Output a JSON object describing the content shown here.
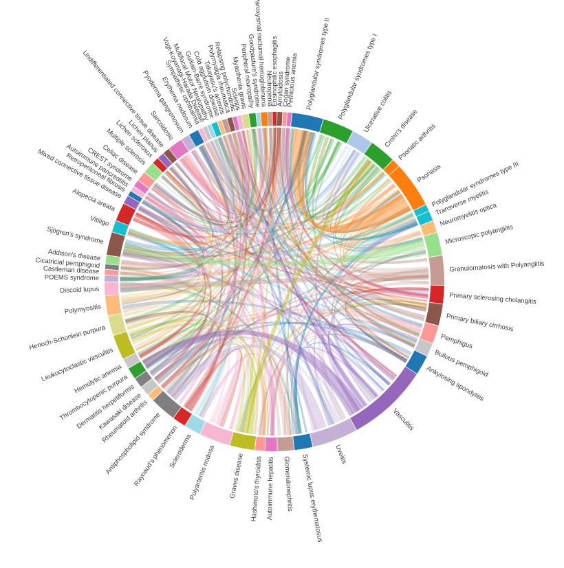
{
  "chart_data": {
    "type": "chord",
    "groups": [
      {
        "label": "Polyglandular syndromes type II",
        "weight": 3.8,
        "color": "#1f77b4"
      },
      {
        "label": "Polyglandular syndromes type I",
        "weight": 3.8,
        "color": "#2ca02c"
      },
      {
        "label": "Ulcerative colitis",
        "weight": 2.6,
        "color": "#aec7e8"
      },
      {
        "label": "Crohn's disease",
        "weight": 3.2,
        "color": "#2ca02c"
      },
      {
        "label": "Psoriatic arthritis",
        "weight": 1.0,
        "color": "#ff7f0e"
      },
      {
        "label": "Psoriasis",
        "weight": 5.6,
        "color": "#ff7f0e"
      },
      {
        "label": "Polyglandular syndromes type III",
        "weight": 0.8,
        "color": "#17becf"
      },
      {
        "label": "Transverse myelitis",
        "weight": 1.2,
        "color": "#17becf"
      },
      {
        "label": "Neuromyelitis optica",
        "weight": 1.4,
        "color": "#ffbb78"
      },
      {
        "label": "Microscopic polyangiitis",
        "weight": 2.8,
        "color": "#98df8a"
      },
      {
        "label": "Granulomatosis with Polyangiitis",
        "weight": 3.6,
        "color": "#c49c94"
      },
      {
        "label": "Primary sclerosing cholangitis",
        "weight": 2.2,
        "color": "#d62728"
      },
      {
        "label": "Primary biliary cirrhosis",
        "weight": 2.6,
        "color": "#8c564b"
      },
      {
        "label": "Pemphigus",
        "weight": 2.2,
        "color": "#ff9896"
      },
      {
        "label": "Bullous pemphigoid",
        "weight": 1.6,
        "color": "#c7c7c7"
      },
      {
        "label": "Ankylosing spondylitis",
        "weight": 2.4,
        "color": "#1f77b4"
      },
      {
        "label": "Vasculitis",
        "weight": 10.0,
        "color": "#9467bd"
      },
      {
        "label": "Uveitis",
        "weight": 5.6,
        "color": "#c5b0d5"
      },
      {
        "label": "Systemic lupus erythematosus",
        "weight": 2.2,
        "color": "#1f77b4"
      },
      {
        "label": "Glomerulonephritis",
        "weight": 2.0,
        "color": "#c49c94"
      },
      {
        "label": "Autoimmune hepatitis",
        "weight": 1.4,
        "color": "#e377c2"
      },
      {
        "label": "Hashimoto's thyroiditis",
        "weight": 1.2,
        "color": "#ff9896"
      },
      {
        "label": "Graves disease",
        "weight": 3.0,
        "color": "#bcbd22"
      },
      {
        "label": "Polyarteritis nodosa",
        "weight": 3.8,
        "color": "#f7b6d2"
      },
      {
        "label": "Scleroderma",
        "weight": 2.0,
        "color": "#9edae5"
      },
      {
        "label": "Raynaud's phenomenon",
        "weight": 1.6,
        "color": "#d62728"
      },
      {
        "label": "Antiphospholipid syndrome",
        "weight": 3.2,
        "color": "#7f7f7f"
      },
      {
        "label": "Rheumatoid arthritis",
        "weight": 0.8,
        "color": "#ffbb78"
      },
      {
        "label": "Kawasaki disease",
        "weight": 1.2,
        "color": "#c7c7c7"
      },
      {
        "label": "Dermatitis herpetiformis",
        "weight": 1.2,
        "color": "#7f7f7f"
      },
      {
        "label": "Thrombocytopenic purpura",
        "weight": 1.4,
        "color": "#2ca02c"
      },
      {
        "label": "Hemolytic anemia",
        "weight": 1.2,
        "color": "#c7c7c7"
      },
      {
        "label": "Leukocytoclastic vasculitis",
        "weight": 3.0,
        "color": "#bcbd22"
      },
      {
        "label": "Henoch-Schonlein purpura",
        "weight": 2.4,
        "color": "#dbdb8d"
      },
      {
        "label": "Polymyositis",
        "weight": 2.4,
        "color": "#ffbb78"
      },
      {
        "label": "Discoid lupus",
        "weight": 1.6,
        "color": "#f7b6d2"
      },
      {
        "label": "POEMS syndrome",
        "weight": 0.8,
        "color": "#c5b0d5"
      },
      {
        "label": "Castleman disease",
        "weight": 0.6,
        "color": "#ff9896"
      },
      {
        "label": "Cicatricial pemphigoid",
        "weight": 0.6,
        "color": "#7f7f7f"
      },
      {
        "label": "Addison's disease",
        "weight": 1.0,
        "color": "#98df8a"
      },
      {
        "label": "Sjögren's syndrome",
        "weight": 2.8,
        "color": "#8c564b"
      },
      {
        "label": "Vitiligo",
        "weight": 1.4,
        "color": "#17becf"
      },
      {
        "label": "Alopecia areata",
        "weight": 2.2,
        "color": "#d62728"
      },
      {
        "label": "Mixed connective tissue disease",
        "weight": 1.0,
        "color": "#9467bd"
      },
      {
        "label": "Retroperitoneal fibrosis",
        "weight": 0.6,
        "color": "#1f77b4"
      },
      {
        "label": "Autoimmune pancreatitis",
        "weight": 0.6,
        "color": "#f7b6d2"
      },
      {
        "label": "CREST syndrome",
        "weight": 0.8,
        "color": "#e377c2"
      },
      {
        "label": "Celiac disease",
        "weight": 1.2,
        "color": "#ff9896"
      },
      {
        "label": "Multiple sclerosis",
        "weight": 1.4,
        "color": "#98df8a"
      },
      {
        "label": "Lichen sclerosus",
        "weight": 0.8,
        "color": "#d62728"
      },
      {
        "label": "Lichen planus",
        "weight": 0.8,
        "color": "#9467bd"
      },
      {
        "label": "Undifferentiated connective tissue disease",
        "weight": 0.8,
        "color": "#8c564b"
      },
      {
        "label": "Sarcoidosis",
        "weight": 1.8,
        "color": "#e377c2"
      },
      {
        "label": "Pyoderma gangrenosum",
        "weight": 1.0,
        "color": "#c5b0d5"
      },
      {
        "label": "Erythema nodosum",
        "weight": 1.2,
        "color": "#1f77b4"
      },
      {
        "label": "Sympathetic ophthalmia",
        "weight": 0.5,
        "color": "#f7b6d2"
      },
      {
        "label": "Vogt-Koyanagi-Harada Disease",
        "weight": 0.5,
        "color": "#c7c7c7"
      },
      {
        "label": "Multifocal Motor Neuropathy",
        "weight": 0.5,
        "color": "#9edae5"
      },
      {
        "label": "Guillain-Barré syndrome",
        "weight": 0.7,
        "color": "#17becf"
      },
      {
        "label": "Cold agglutinin disease",
        "weight": 0.5,
        "color": "#ffbb78"
      },
      {
        "label": "Takayasu's arteritis",
        "weight": 0.6,
        "color": "#c49c94"
      },
      {
        "label": "Polymyalgia rheumatica",
        "weight": 0.6,
        "color": "#8c564b"
      },
      {
        "label": "Relapsing polychondritis",
        "weight": 0.5,
        "color": "#e377c2"
      },
      {
        "label": "Scleritis",
        "weight": 0.5,
        "color": "#f7b6d2"
      },
      {
        "label": "Myasthenia gravis",
        "weight": 0.8,
        "color": "#dbdb8d"
      },
      {
        "label": "Peripheral neuropathy",
        "weight": 0.8,
        "color": "#2ca02c"
      },
      {
        "label": "Goodpasture's syndrome",
        "weight": 0.5,
        "color": "#9edae5"
      },
      {
        "label": "Paroxysmal nocturnal hemoglobinuria",
        "weight": 0.8,
        "color": "#ff7f0e"
      },
      {
        "label": "Neutropenia",
        "weight": 0.5,
        "color": "#c49c94"
      },
      {
        "label": "Eosinophilic esophagitis",
        "weight": 0.5,
        "color": "#d62728"
      },
      {
        "label": "Amyloidosis",
        "weight": 0.6,
        "color": "#8c564b"
      },
      {
        "label": "Cogan syndrome",
        "weight": 0.5,
        "color": "#ff9896"
      },
      {
        "label": "Pernicious anemia",
        "weight": 0.5,
        "color": "#e377c2"
      }
    ]
  }
}
